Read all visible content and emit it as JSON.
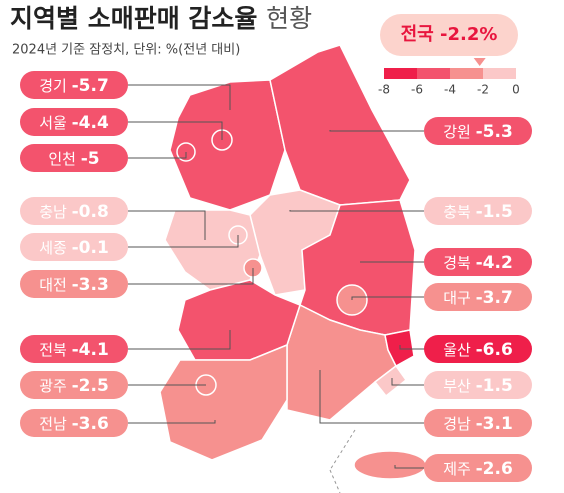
{
  "title": "지역별 소매판매 감소율",
  "title_suffix": "현황",
  "subtitle": "2024년 기준 잠정치, 단위: %(전년 대비)",
  "national": {
    "label": "전국",
    "value": -2.2,
    "value_label": "-2.2%"
  },
  "scale": {
    "ticks": [
      -8,
      -6,
      -4,
      -2,
      0
    ],
    "colors": [
      "#ef1f4a",
      "#f3536d",
      "#f6918f",
      "#fbc8c8"
    ]
  },
  "regions": [
    {
      "name": "경기",
      "value": -5.7
    },
    {
      "name": "서울",
      "value": -4.4
    },
    {
      "name": "인천",
      "value": -5.0
    },
    {
      "name": "충남",
      "value": -0.8
    },
    {
      "name": "세종",
      "value": -0.1
    },
    {
      "name": "대전",
      "value": -3.3
    },
    {
      "name": "전북",
      "value": -4.1
    },
    {
      "name": "광주",
      "value": -2.5
    },
    {
      "name": "전남",
      "value": -3.6
    },
    {
      "name": "강원",
      "value": -5.3
    },
    {
      "name": "충북",
      "value": -1.5
    },
    {
      "name": "경북",
      "value": -4.2
    },
    {
      "name": "대구",
      "value": -3.7
    },
    {
      "name": "울산",
      "value": -6.6
    },
    {
      "name": "부산",
      "value": -1.5
    },
    {
      "name": "경남",
      "value": -3.1
    },
    {
      "name": "제주",
      "value": -2.6
    }
  ]
}
